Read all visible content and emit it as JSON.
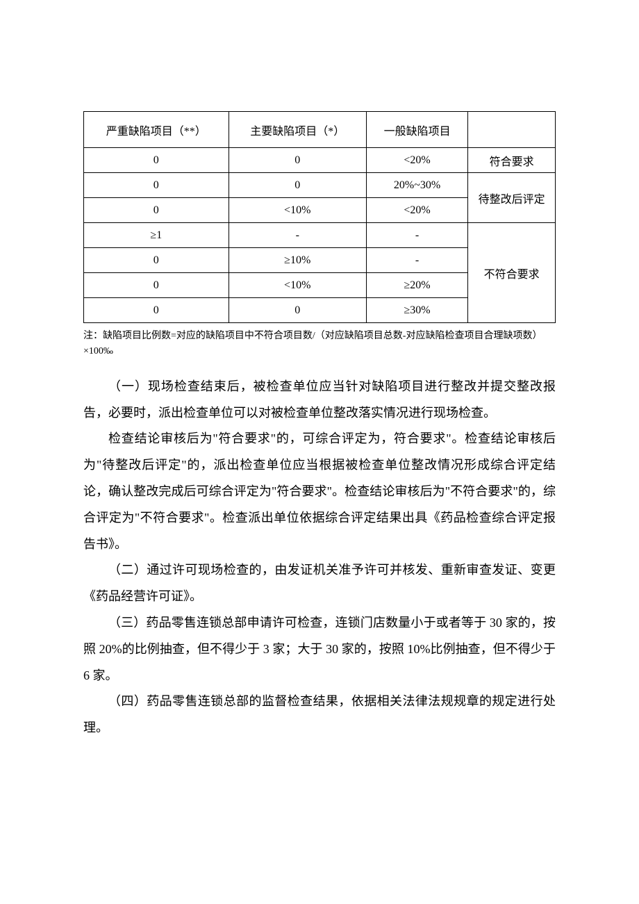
{
  "table": {
    "columns": {
      "col1_width": "25%",
      "col2_width": "25%",
      "col3_width": "25%",
      "col4_width": "25%"
    },
    "header": {
      "cell1": "严重缺陷项目（**）",
      "cell2": "主要缺陷项目（*）",
      "cell3": "一般缺陷项目",
      "cell4": ""
    },
    "row1": {
      "c1": "0",
      "c2": "0",
      "c3": "<20%",
      "c4": "符合要求"
    },
    "row2": {
      "c1": "0",
      "c2": "0",
      "c3": "20%~30%"
    },
    "row3": {
      "c1": "0",
      "c2": "<10%",
      "c3": "<20%",
      "c4merged": "待整改后评定"
    },
    "row4": {
      "c1": "≥1",
      "c2": "-",
      "c3": "-"
    },
    "row5": {
      "c1": "0",
      "c2": "≥10%",
      "c3": "-"
    },
    "row6": {
      "c1": "0",
      "c2": "<10%",
      "c3": "≥20%"
    },
    "row7": {
      "c1": "0",
      "c2": "0",
      "c3": "≥30%",
      "c4merged": "不符合要求"
    },
    "border_color": "#000000",
    "font_size": 16
  },
  "note": "注：缺陷项目比例数=对应的缺陷项目中不符合项目数/（对应缺陷项目总数-对应缺陷检查项目合理缺项数）×100‰",
  "paragraphs": {
    "p1": "（一）现场检查结束后，被检查单位应当针对缺陷项目进行整改并提交整改报告，必要时，派出检查单位可以对被检查单位整改落实情况进行现场检查。",
    "p2": "检查结论审核后为\"符合要求\"的，可综合评定为，符合要求\"。检查结论审核后为\"待整改后评定\"的，派出检查单位应当根据被检查单位整改情况形成综合评定结论，确认整改完成后可综合评定为\"符合要求\"。检查结论审核后为\"不符合要求\"的，综合评定为\"不符合要求\"。检查派出单位依据综合评定结果出具《药品检查综合评定报告书》。",
    "p3": "（二）通过许可现场检查的，由发证机关准予许可并核发、重新审查发证、变更《药品经营许可证》。",
    "p4": "（三）药品零售连锁总部申请许可检查，连锁门店数量小于或者等于 30 家的，按照 20%的比例抽查，但不得少于 3 家；大于 30 家的，按照 10%比例抽查，但不得少于 6 家。",
    "p5": "（四）药品零售连锁总部的监督检查结果，依据相关法律法规规章的规定进行处理。"
  },
  "styling": {
    "body_bg": "#ffffff",
    "text_color": "#000000",
    "body_font_size": 18,
    "note_font_size": 14,
    "line_height": 2.1
  }
}
